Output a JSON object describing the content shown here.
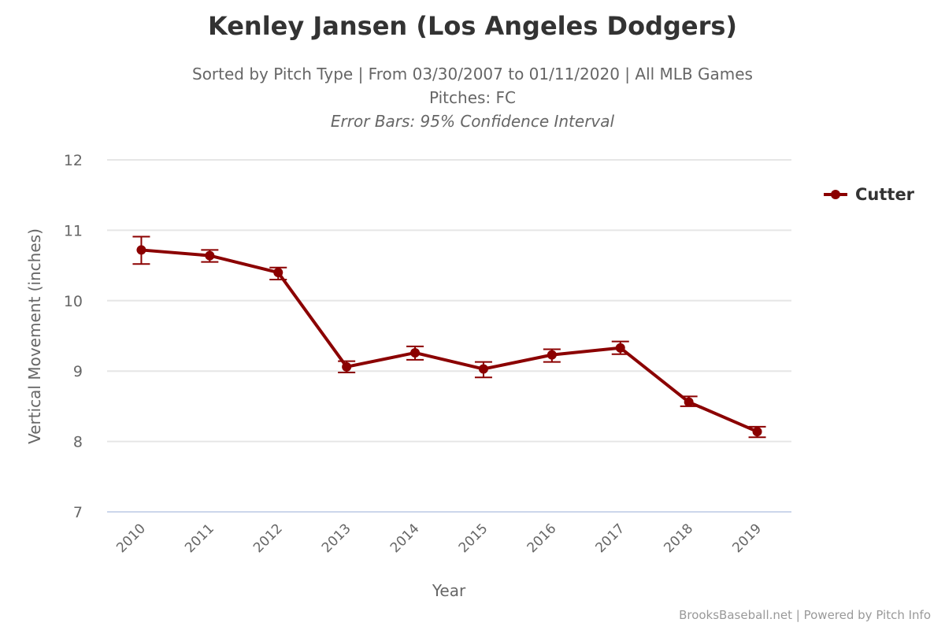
{
  "chart_data": {
    "type": "line",
    "title": "Kenley Jansen (Los Angeles Dodgers)",
    "subtitle_lines": [
      "Sorted by Pitch Type | From 03/30/2007 to 01/11/2020 | All MLB Games",
      "Pitches: FC",
      "Error Bars: 95% Confidence Interval"
    ],
    "xlabel": "Year",
    "ylabel": "Vertical Movement (inches)",
    "categories": [
      "2010",
      "2011",
      "2012",
      "2013",
      "2014",
      "2015",
      "2016",
      "2017",
      "2018",
      "2019"
    ],
    "ylim": [
      7,
      12
    ],
    "yticks": [
      7,
      8,
      9,
      10,
      11,
      12
    ],
    "grid": true,
    "legend_position": "right",
    "series": [
      {
        "name": "Cutter",
        "color": "#8b0000",
        "values": [
          10.72,
          10.64,
          10.4,
          9.06,
          9.26,
          9.03,
          9.23,
          9.33,
          8.56,
          8.14
        ],
        "error_low": [
          10.52,
          10.55,
          10.3,
          8.98,
          9.16,
          8.91,
          9.13,
          9.24,
          8.5,
          8.06
        ],
        "error_high": [
          10.91,
          10.72,
          10.47,
          9.14,
          9.35,
          9.13,
          9.31,
          9.42,
          8.64,
          8.21
        ]
      }
    ],
    "credits": "BrooksBaseball.net | Powered by Pitch Info"
  }
}
